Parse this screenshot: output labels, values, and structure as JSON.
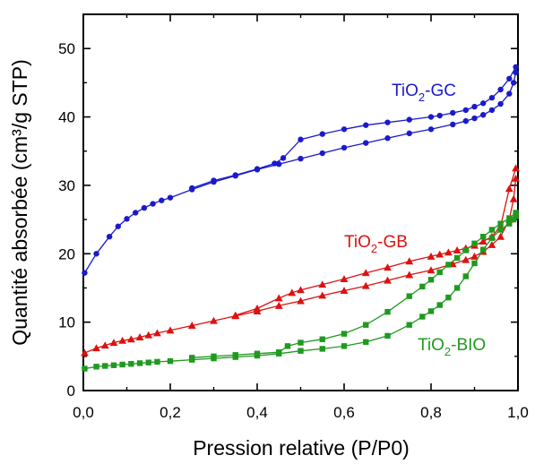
{
  "chart_data": {
    "type": "line",
    "xlabel": "Pression relative (P/P0)",
    "ylabel": "Quantité absorbée (cm³/g STP)",
    "xlim": [
      0.0,
      1.0
    ],
    "ylim": [
      0,
      55
    ],
    "x_ticks": [
      {
        "value": 0.0,
        "label": "0,0"
      },
      {
        "value": 0.2,
        "label": "0,2"
      },
      {
        "value": 0.4,
        "label": "0,4"
      },
      {
        "value": 0.6,
        "label": "0,6"
      },
      {
        "value": 0.8,
        "label": "0,8"
      },
      {
        "value": 1.0,
        "label": "1,0"
      }
    ],
    "y_ticks": [
      {
        "value": 0,
        "label": "0"
      },
      {
        "value": 10,
        "label": "10"
      },
      {
        "value": 20,
        "label": "20"
      },
      {
        "value": 30,
        "label": "30"
      },
      {
        "value": 40,
        "label": "40"
      },
      {
        "value": 50,
        "label": "50"
      }
    ],
    "grid": false,
    "legend": "inline labels",
    "series": [
      {
        "name": "TiO2-GC",
        "label_main": "TiO",
        "label_sub": "2",
        "label_rest": "-GC",
        "color": "#1a1acc",
        "marker": "circle",
        "adsorption": {
          "x": [
            0.003,
            0.03,
            0.06,
            0.08,
            0.1,
            0.12,
            0.14,
            0.16,
            0.18,
            0.2,
            0.25,
            0.3,
            0.35,
            0.4,
            0.45,
            0.5,
            0.55,
            0.6,
            0.65,
            0.7,
            0.75,
            0.8,
            0.85,
            0.88,
            0.9,
            0.92,
            0.94,
            0.96,
            0.98,
            0.99,
            0.995
          ],
          "y": [
            17.2,
            20.0,
            22.5,
            24.0,
            25.1,
            26.0,
            26.7,
            27.3,
            27.8,
            28.2,
            29.4,
            30.5,
            31.4,
            32.3,
            33.1,
            33.9,
            34.7,
            35.5,
            36.2,
            36.9,
            37.6,
            38.2,
            38.9,
            39.4,
            39.8,
            40.3,
            41.0,
            41.9,
            43.4,
            45.0,
            46.5
          ]
        },
        "desorption": {
          "x": [
            0.995,
            0.98,
            0.96,
            0.94,
            0.92,
            0.9,
            0.88,
            0.85,
            0.82,
            0.8,
            0.75,
            0.7,
            0.65,
            0.6,
            0.55,
            0.5,
            0.46,
            0.44,
            0.4,
            0.35,
            0.3,
            0.25
          ],
          "y": [
            47.3,
            45.6,
            44.0,
            42.8,
            42.0,
            41.5,
            41.0,
            40.6,
            40.2,
            40.0,
            39.6,
            39.2,
            38.8,
            38.2,
            37.5,
            36.7,
            34.0,
            33.2,
            32.4,
            31.5,
            30.7,
            29.6
          ]
        }
      },
      {
        "name": "TiO2-GB",
        "label_main": "TiO",
        "label_sub": "2",
        "label_rest": "-GB",
        "color": "#dd1111",
        "marker": "triangle",
        "adsorption": {
          "x": [
            0.003,
            0.03,
            0.05,
            0.07,
            0.09,
            0.11,
            0.13,
            0.15,
            0.17,
            0.2,
            0.25,
            0.3,
            0.35,
            0.4,
            0.45,
            0.5,
            0.55,
            0.6,
            0.65,
            0.7,
            0.75,
            0.8,
            0.85,
            0.88,
            0.9,
            0.92,
            0.94,
            0.96,
            0.98,
            0.99,
            0.995
          ],
          "y": [
            5.5,
            6.2,
            6.6,
            7.0,
            7.3,
            7.5,
            7.8,
            8.1,
            8.4,
            8.8,
            9.5,
            10.2,
            10.9,
            11.6,
            12.4,
            13.1,
            13.9,
            14.6,
            15.3,
            16.1,
            16.9,
            17.6,
            18.5,
            19.1,
            19.6,
            20.3,
            21.3,
            22.5,
            25.0,
            28.0,
            31.0
          ]
        },
        "desorption": {
          "x": [
            0.995,
            0.98,
            0.96,
            0.94,
            0.92,
            0.9,
            0.88,
            0.86,
            0.84,
            0.82,
            0.8,
            0.75,
            0.7,
            0.65,
            0.6,
            0.55,
            0.5,
            0.48,
            0.45,
            0.4,
            0.35
          ],
          "y": [
            32.5,
            29.5,
            24.0,
            22.5,
            21.8,
            21.2,
            20.8,
            20.5,
            20.2,
            19.9,
            19.6,
            18.9,
            18.0,
            17.2,
            16.3,
            15.5,
            14.7,
            14.3,
            13.5,
            12.0,
            11.0
          ]
        }
      },
      {
        "name": "TiO2-BIO",
        "label_main": "TiO",
        "label_sub": "2",
        "label_rest": "-BIO",
        "color": "#1f9a1f",
        "marker": "square",
        "adsorption": {
          "x": [
            0.003,
            0.03,
            0.05,
            0.07,
            0.09,
            0.11,
            0.13,
            0.15,
            0.17,
            0.2,
            0.25,
            0.3,
            0.35,
            0.4,
            0.45,
            0.5,
            0.55,
            0.6,
            0.65,
            0.7,
            0.75,
            0.78,
            0.8,
            0.82,
            0.84,
            0.86,
            0.88,
            0.9,
            0.92,
            0.94,
            0.96,
            0.98,
            0.99,
            0.995
          ],
          "y": [
            3.2,
            3.5,
            3.6,
            3.7,
            3.8,
            3.9,
            4.0,
            4.1,
            4.2,
            4.3,
            4.5,
            4.7,
            4.9,
            5.1,
            5.4,
            5.8,
            6.1,
            6.5,
            7.1,
            8.0,
            9.6,
            10.8,
            11.6,
            12.5,
            13.6,
            15.0,
            16.7,
            18.6,
            20.6,
            22.3,
            23.5,
            24.4,
            25.0,
            25.5
          ]
        },
        "desorption": {
          "x": [
            0.995,
            0.98,
            0.96,
            0.94,
            0.92,
            0.9,
            0.88,
            0.86,
            0.84,
            0.82,
            0.8,
            0.78,
            0.75,
            0.7,
            0.65,
            0.6,
            0.55,
            0.5,
            0.47,
            0.45,
            0.4,
            0.35,
            0.3,
            0.25
          ],
          "y": [
            26.0,
            25.2,
            24.4,
            23.5,
            22.5,
            21.5,
            20.5,
            19.4,
            18.4,
            17.3,
            16.2,
            15.2,
            13.8,
            11.5,
            9.6,
            8.3,
            7.5,
            7.0,
            6.5,
            5.6,
            5.4,
            5.2,
            5.0,
            4.8
          ]
        }
      }
    ]
  }
}
